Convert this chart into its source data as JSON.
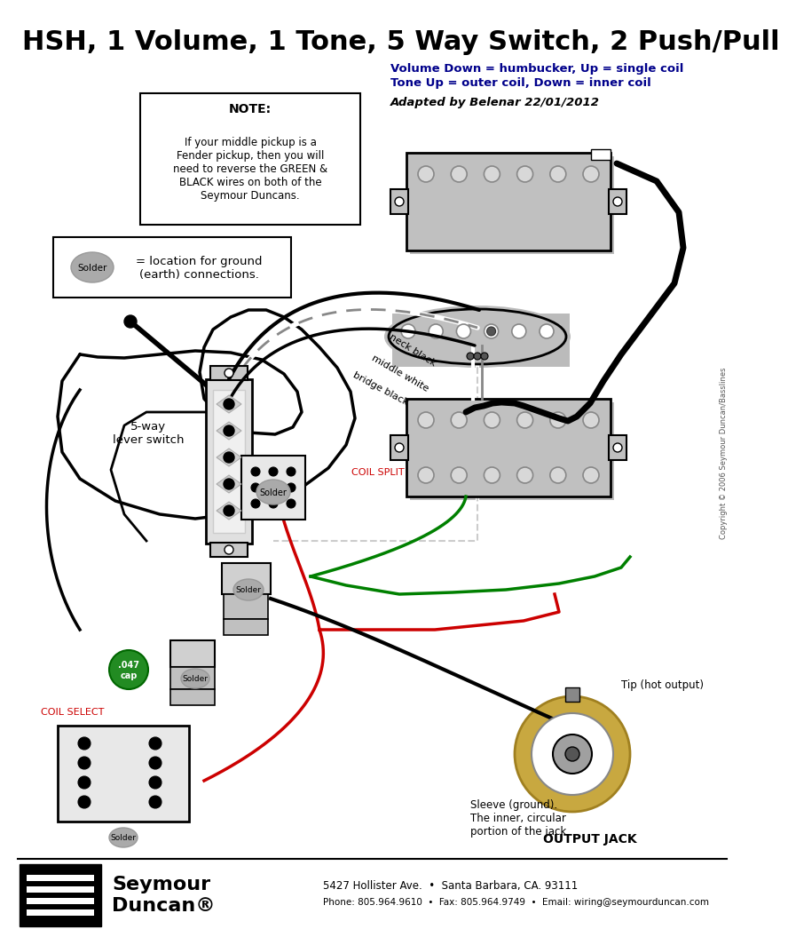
{
  "title": "HSH, 1 Volume, 1 Tone, 5 Way Switch, 2 Push/Pull",
  "subtitle1": "Volume Down = humbucker, Up = single coil",
  "subtitle2": "Tone Up = outer coil, Down = inner coil",
  "adapted_by": "Adapted by Belenar 22/01/2012",
  "note_title": "NOTE:",
  "note_text": "If your middle pickup is a\nFender pickup, then you will\nneed to reverse the GREEN &\nBLACK wires on both of the\nSeymour Duncans.",
  "solder_label": "Solder",
  "solder_desc": "= location for ground\n(earth) connections.",
  "switch_label": "5-way\nlever switch",
  "coil_split_label": "COIL SPLIT",
  "coil_select_label": "COIL SELECT",
  "tip_label": "Tip (hot output)",
  "sleeve_label": "Sleeve (ground).\nThe inner, circular\nportion of the jack",
  "output_jack_label": "OUTPUT JACK",
  "cap_label": ".047\ncap",
  "footer_line1": "5427 Hollister Ave.  •  Santa Barbara, CA. 93111",
  "footer_line2": "Phone: 805.964.9610  •  Fax: 805.964.9749  •  Email: wiring@seymourduncan.com",
  "copyright": "Copyright © 2006 Seymour Duncan/Basslines",
  "bg_color": "#ffffff",
  "title_color": "#000000",
  "subtitle_color": "#00008b",
  "red_color": "#cc0000",
  "green_color": "#008000",
  "note_bg": "#ffffff",
  "pickup_fill": "#c0c0c0",
  "pickup_screw_fill": "#d8d8d8",
  "switch_fill": "#d0d0d0",
  "pot_fill": "#d0d0d0",
  "solder_fill": "#aaaaaa",
  "jack_gold": "#c8a840",
  "cap_green": "#228b22"
}
